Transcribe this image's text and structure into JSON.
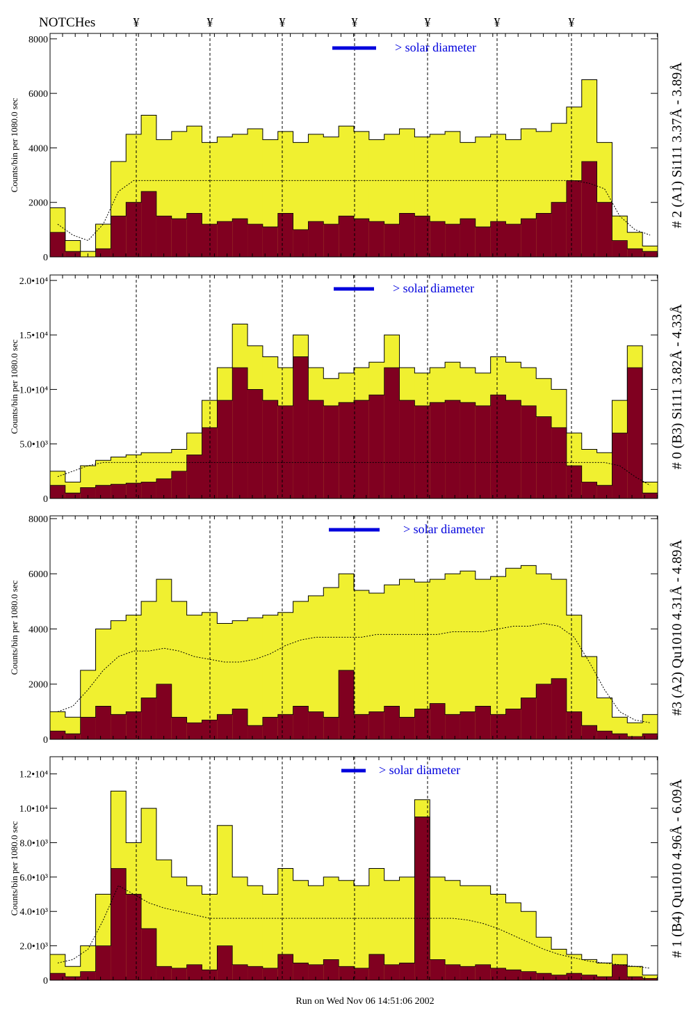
{
  "header": {
    "notches_label": "NOTCHes",
    "notch_symbol": "¥",
    "notch_count": 7
  },
  "footer": {
    "run_text": "Run on Wed Nov 06 14:51:06 2002"
  },
  "colors": {
    "total": "#f0f030",
    "flare": "#800020",
    "legend": "#0000dd",
    "outline": "#000000"
  },
  "chart_data": [
    {
      "type": "bar",
      "title": "# 2 (A1) Si111  3.37Å - 3.89Å",
      "ylabel": "Counts/bin per  1080.0 sec",
      "legend": "> solar diameter",
      "ylim": [
        0,
        8200
      ],
      "yticks": [
        0,
        2000,
        4000,
        6000,
        8000
      ],
      "ytick_labels": [
        "0",
        "2000",
        "4000",
        "6000",
        "8000"
      ],
      "series": [
        {
          "name": "total",
          "values": [
            1800,
            600,
            200,
            1200,
            3500,
            4500,
            5200,
            4300,
            4600,
            4800,
            4200,
            4400,
            4500,
            4700,
            4300,
            4600,
            4200,
            4500,
            4400,
            4800,
            4600,
            4300,
            4500,
            4700,
            4400,
            4500,
            4600,
            4200,
            4400,
            4500,
            4300,
            4700,
            4600,
            4900,
            5500,
            6500,
            4200,
            1500,
            900,
            400
          ]
        },
        {
          "name": "flare",
          "values": [
            900,
            200,
            0,
            300,
            1500,
            2000,
            2400,
            1500,
            1400,
            1600,
            1200,
            1300,
            1400,
            1200,
            1100,
            1600,
            1000,
            1300,
            1200,
            1500,
            1400,
            1300,
            1200,
            1600,
            1500,
            1300,
            1200,
            1400,
            1100,
            1300,
            1200,
            1400,
            1600,
            2000,
            2800,
            3500,
            2000,
            600,
            300,
            200
          ]
        },
        {
          "name": "average",
          "values": [
            1200,
            800,
            600,
            1200,
            2400,
            2800,
            2800,
            2800,
            2800,
            2800,
            2800,
            2800,
            2800,
            2800,
            2800,
            2800,
            2800,
            2800,
            2800,
            2800,
            2800,
            2800,
            2800,
            2800,
            2800,
            2800,
            2800,
            2800,
            2800,
            2800,
            2800,
            2800,
            2800,
            2800,
            2800,
            2700,
            2500,
            1500,
            1000,
            800
          ]
        }
      ]
    },
    {
      "type": "bar",
      "title": "# 0 (B3) Si111  3.82Å - 4.33Å",
      "ylabel": "Counts/bin per  1080.0 sec",
      "legend": "> solar diameter",
      "ylim": [
        0,
        20500
      ],
      "yticks": [
        0,
        5000,
        10000,
        15000,
        20000
      ],
      "ytick_labels": [
        "0",
        "5.0•10³",
        "1.0•10⁴",
        "1.5•10⁴",
        "2.0•10⁴"
      ],
      "series": [
        {
          "name": "total",
          "values": [
            2500,
            1500,
            3000,
            3500,
            3800,
            4000,
            4200,
            4200,
            4500,
            6000,
            9000,
            12000,
            16000,
            14000,
            13000,
            12000,
            15000,
            12000,
            11000,
            11500,
            12000,
            12500,
            15000,
            12000,
            11500,
            12000,
            12500,
            12000,
            11500,
            13000,
            12500,
            12000,
            11000,
            10000,
            6000,
            4500,
            4200,
            9000,
            14000,
            1500
          ]
        },
        {
          "name": "flare",
          "values": [
            1200,
            500,
            1000,
            1200,
            1300,
            1400,
            1500,
            1800,
            2500,
            4000,
            6500,
            9000,
            12000,
            10000,
            9000,
            8500,
            13000,
            9000,
            8500,
            8800,
            9000,
            9500,
            12000,
            9000,
            8500,
            8800,
            9000,
            8800,
            8500,
            9500,
            9000,
            8500,
            7500,
            6500,
            3000,
            1500,
            1200,
            6000,
            12000,
            500
          ]
        },
        {
          "name": "average",
          "values": [
            2000,
            2500,
            3000,
            3300,
            3300,
            3300,
            3300,
            3300,
            3300,
            3300,
            3300,
            3300,
            3300,
            3300,
            3300,
            3300,
            3300,
            3300,
            3300,
            3300,
            3300,
            3300,
            3300,
            3300,
            3300,
            3300,
            3300,
            3300,
            3300,
            3300,
            3300,
            3300,
            3300,
            3300,
            3300,
            3300,
            3300,
            3000,
            2000,
            1200
          ]
        }
      ]
    },
    {
      "type": "bar",
      "title": "#3 (A2) Qu1010  4.31Å - 4.89Å",
      "ylabel": "Counts/bin per  1080.0 sec",
      "legend": "> solar diameter",
      "ylim": [
        0,
        8100
      ],
      "yticks": [
        0,
        2000,
        4000,
        6000,
        8000
      ],
      "ytick_labels": [
        "0",
        "2000",
        "4000",
        "6000",
        "8000"
      ],
      "series": [
        {
          "name": "total",
          "values": [
            1000,
            800,
            2500,
            4000,
            4300,
            4500,
            5000,
            5800,
            5000,
            4500,
            4600,
            4200,
            4300,
            4400,
            4500,
            4600,
            5000,
            5200,
            5500,
            6000,
            5400,
            5300,
            5600,
            5800,
            5700,
            5800,
            6000,
            6100,
            5800,
            5900,
            6200,
            6300,
            6000,
            5800,
            4500,
            3000,
            1500,
            800,
            600,
            900
          ]
        },
        {
          "name": "flare",
          "values": [
            300,
            200,
            800,
            1200,
            900,
            1000,
            1500,
            2000,
            800,
            600,
            700,
            900,
            1100,
            500,
            800,
            900,
            1200,
            1000,
            800,
            2500,
            900,
            1000,
            1200,
            800,
            1100,
            1300,
            900,
            1000,
            1200,
            900,
            1100,
            1500,
            2000,
            2200,
            1000,
            500,
            300,
            200,
            100,
            200
          ]
        },
        {
          "name": "average",
          "values": [
            1000,
            1200,
            1800,
            2500,
            3000,
            3200,
            3200,
            3300,
            3200,
            3000,
            2900,
            2800,
            2800,
            2900,
            3100,
            3400,
            3600,
            3700,
            3700,
            3700,
            3700,
            3800,
            3800,
            3800,
            3800,
            3800,
            3900,
            3900,
            3900,
            4000,
            4100,
            4100,
            4200,
            4100,
            3700,
            2800,
            1800,
            1000,
            700,
            600
          ]
        }
      ]
    },
    {
      "type": "bar",
      "title": "# 1 (B4) Qu1010 4.96Å - 6.09Å",
      "ylabel": "Counts/bin per  1080.0 sec",
      "legend": "> solar diameter",
      "ylim": [
        0,
        13000
      ],
      "yticks": [
        0,
        2000,
        4000,
        6000,
        8000,
        10000,
        12000
      ],
      "ytick_labels": [
        "0",
        "2.0•10³",
        "4.0•10³",
        "6.0•10³",
        "8.0•10³",
        "1.0•10⁴",
        "1.2•10⁴"
      ],
      "series": [
        {
          "name": "total",
          "values": [
            1500,
            800,
            2000,
            5000,
            11000,
            8000,
            10000,
            7000,
            6000,
            5500,
            5000,
            9000,
            6000,
            5500,
            5000,
            6500,
            5800,
            5500,
            6000,
            5800,
            5500,
            6500,
            5800,
            6000,
            10500,
            6000,
            5800,
            5500,
            5500,
            5000,
            4500,
            4000,
            2500,
            1800,
            1500,
            1200,
            1000,
            1500,
            800,
            300
          ]
        },
        {
          "name": "flare",
          "values": [
            400,
            200,
            500,
            2000,
            6500,
            5000,
            3000,
            800,
            700,
            900,
            600,
            2000,
            900,
            800,
            700,
            1500,
            1000,
            900,
            1200,
            800,
            700,
            1500,
            900,
            1000,
            9500,
            1200,
            900,
            800,
            900,
            700,
            600,
            500,
            400,
            300,
            400,
            300,
            200,
            900,
            200,
            100
          ]
        },
        {
          "name": "average",
          "values": [
            1000,
            1200,
            1800,
            3500,
            5500,
            5000,
            4500,
            4200,
            4000,
            3800,
            3600,
            3600,
            3600,
            3600,
            3600,
            3600,
            3600,
            3600,
            3600,
            3600,
            3600,
            3600,
            3600,
            3600,
            3600,
            3600,
            3600,
            3500,
            3300,
            3000,
            2600,
            2200,
            1800,
            1500,
            1300,
            1100,
            1000,
            900,
            800,
            700
          ]
        }
      ]
    }
  ]
}
